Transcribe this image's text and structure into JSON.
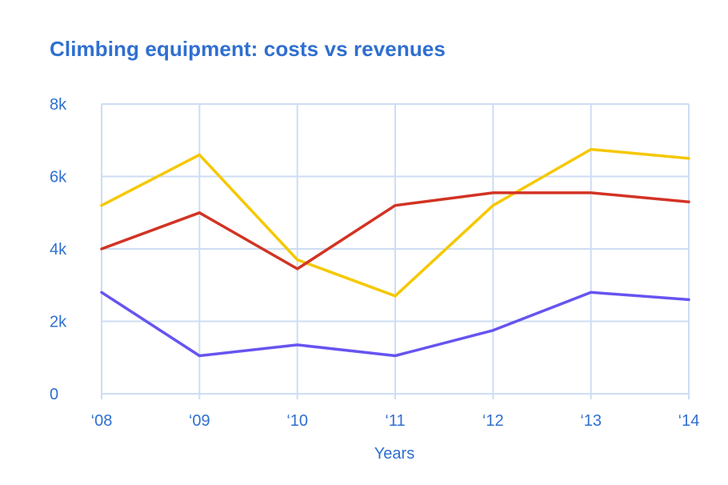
{
  "chart_data": {
    "type": "line",
    "title": "Climbing equipment: costs vs revenues",
    "xlabel": "Years",
    "ylabel": "",
    "categories": [
      "‘08",
      "‘09",
      "‘10",
      "‘11",
      "‘12",
      "‘13",
      "‘14"
    ],
    "ylim": [
      0,
      8000
    ],
    "yticks": [
      0,
      2000,
      4000,
      6000,
      8000
    ],
    "ytick_labels": [
      "0",
      "2k",
      "4k",
      "6k",
      "8k"
    ],
    "grid": true,
    "legend": "none",
    "series": [
      {
        "color": "#f5c800",
        "values": [
          5200,
          6600,
          3700,
          2700,
          5200,
          6750,
          6500
        ]
      },
      {
        "color": "#d23324",
        "values": [
          4000,
          5000,
          3450,
          5200,
          5550,
          5550,
          5300
        ]
      },
      {
        "color": "#6654f0",
        "values": [
          2800,
          1050,
          1350,
          1050,
          1750,
          2800,
          2600
        ]
      }
    ]
  }
}
